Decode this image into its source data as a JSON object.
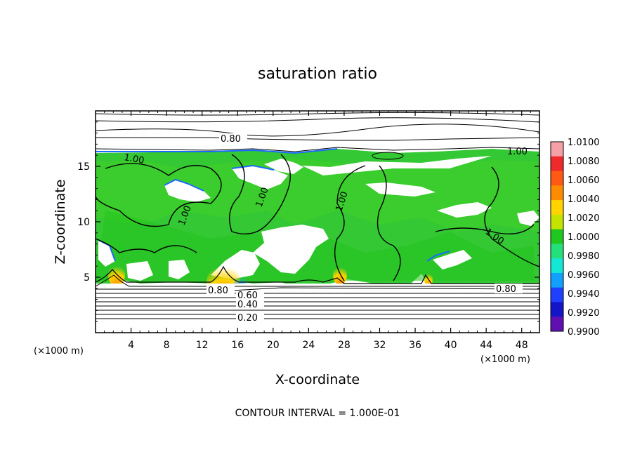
{
  "chart_data": {
    "type": "heatmap",
    "title": "saturation ratio",
    "xlabel": "X-coordinate",
    "ylabel": "Z-coordinate",
    "x_unit": "(×1000 m)",
    "z_unit": "(×1000 m)",
    "xlim": [
      0,
      50
    ],
    "ylim": [
      0,
      20
    ],
    "xticks": [
      "4",
      "8",
      "12",
      "16",
      "20",
      "24",
      "28",
      "32",
      "36",
      "40",
      "44",
      "48"
    ],
    "yticks": [
      "5",
      "10",
      "15"
    ],
    "footer": "CONTOUR INTERVAL = 1.000E-01",
    "colorbar": {
      "labels": [
        "1.0100",
        "1.0080",
        "1.0060",
        "1.0040",
        "1.0020",
        "1.0000",
        "0.9980",
        "0.9960",
        "0.9940",
        "0.9920",
        "0.9900"
      ],
      "colors": [
        "#f4a0a6",
        "#ee2a2a",
        "#ff5a14",
        "#ff8c00",
        "#ffd400",
        "#c4e400",
        "#1ec81e",
        "#24e07a",
        "#14e8d4",
        "#12a0ff",
        "#2040ff",
        "#1414c8",
        "#6010b0"
      ]
    },
    "contour_labels": [
      "0.20",
      "0.40",
      "0.60",
      "0.80",
      "0.80",
      "0.80",
      "1.00"
    ],
    "contour_interval": 0.1
  }
}
